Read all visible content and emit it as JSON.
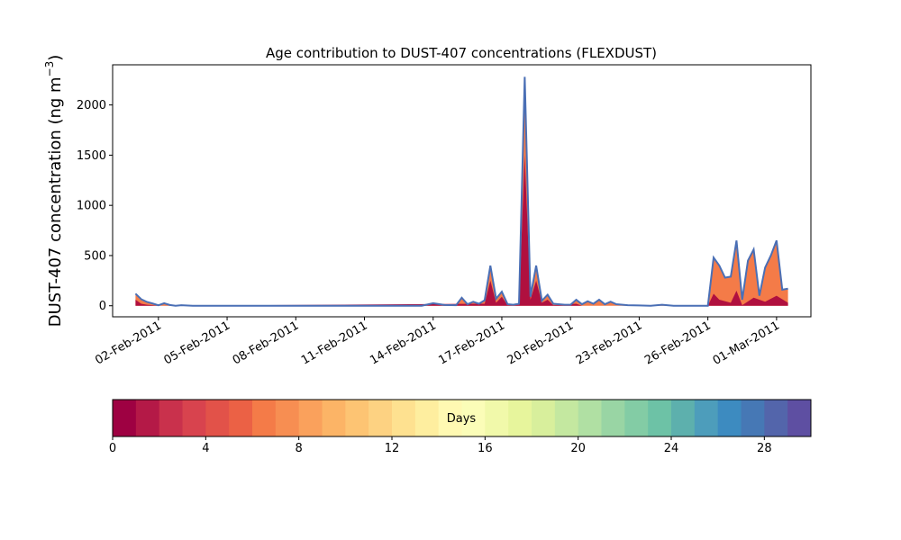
{
  "chart_data": {
    "type": "area",
    "title": "Age contribution to DUST-407 concentrations (FLEXDUST)",
    "xlabel": "",
    "ylabel": "DUST-407 concentration (ng m",
    "ylabel_superscript": "−3",
    "ylabel_close": ")",
    "xlim": [
      "2011-01-31T00:00",
      "2011-03-02T12:00"
    ],
    "ylim": [
      -110,
      2400
    ],
    "y_ticks": [
      0,
      500,
      1000,
      1500,
      2000
    ],
    "x_ticks": [
      {
        "date": "2011-02-02",
        "label": "02-Feb-2011"
      },
      {
        "date": "2011-02-05",
        "label": "05-Feb-2011"
      },
      {
        "date": "2011-02-08",
        "label": "08-Feb-2011"
      },
      {
        "date": "2011-02-11",
        "label": "11-Feb-2011"
      },
      {
        "date": "2011-02-14",
        "label": "14-Feb-2011"
      },
      {
        "date": "2011-02-17",
        "label": "17-Feb-2011"
      },
      {
        "date": "2011-02-20",
        "label": "20-Feb-2011"
      },
      {
        "date": "2011-02-23",
        "label": "23-Feb-2011"
      },
      {
        "date": "2011-02-26",
        "label": "26-Feb-2011"
      },
      {
        "date": "2011-03-01",
        "label": "01-Mar-2011"
      }
    ],
    "grid": false,
    "total_color": "#4a6fb5",
    "young_fraction_color": "#b0103f",
    "old_fraction_color": "#f47b48",
    "series": [
      {
        "role": "total",
        "points": [
          [
            "2011-02-01T00:00",
            120
          ],
          [
            "2011-02-01T06:00",
            65
          ],
          [
            "2011-02-01T12:00",
            38
          ],
          [
            "2011-02-01T18:00",
            22
          ],
          [
            "2011-02-02T00:00",
            5
          ],
          [
            "2011-02-02T06:00",
            25
          ],
          [
            "2011-02-02T12:00",
            8
          ],
          [
            "2011-02-02T18:00",
            0
          ],
          [
            "2011-02-03T00:00",
            5
          ],
          [
            "2011-02-03T12:00",
            0
          ],
          [
            "2011-02-13T12:00",
            0
          ],
          [
            "2011-02-14T00:00",
            25
          ],
          [
            "2011-02-14T12:00",
            8
          ],
          [
            "2011-02-15T00:00",
            5
          ],
          [
            "2011-02-15T06:00",
            80
          ],
          [
            "2011-02-15T12:00",
            15
          ],
          [
            "2011-02-15T18:00",
            40
          ],
          [
            "2011-02-16T00:00",
            20
          ],
          [
            "2011-02-16T06:00",
            55
          ],
          [
            "2011-02-16T12:00",
            400
          ],
          [
            "2011-02-16T18:00",
            70
          ],
          [
            "2011-02-17T00:00",
            140
          ],
          [
            "2011-02-17T06:00",
            15
          ],
          [
            "2011-02-17T12:00",
            10
          ],
          [
            "2011-02-17T18:00",
            20
          ],
          [
            "2011-02-18T00:00",
            2280
          ],
          [
            "2011-02-18T06:00",
            90
          ],
          [
            "2011-02-18T12:00",
            400
          ],
          [
            "2011-02-18T18:00",
            50
          ],
          [
            "2011-02-19T00:00",
            110
          ],
          [
            "2011-02-19T06:00",
            20
          ],
          [
            "2011-02-19T18:00",
            10
          ],
          [
            "2011-02-20T00:00",
            10
          ],
          [
            "2011-02-20T06:00",
            60
          ],
          [
            "2011-02-20T12:00",
            15
          ],
          [
            "2011-02-20T18:00",
            45
          ],
          [
            "2011-02-21T00:00",
            20
          ],
          [
            "2011-02-21T06:00",
            60
          ],
          [
            "2011-02-21T12:00",
            15
          ],
          [
            "2011-02-21T18:00",
            40
          ],
          [
            "2011-02-22T00:00",
            15
          ],
          [
            "2011-02-22T12:00",
            5
          ],
          [
            "2011-02-23T00:00",
            3
          ],
          [
            "2011-02-23T12:00",
            0
          ],
          [
            "2011-02-24T00:00",
            10
          ],
          [
            "2011-02-24T12:00",
            0
          ],
          [
            "2011-02-26T00:00",
            0
          ],
          [
            "2011-02-26T06:00",
            480
          ],
          [
            "2011-02-26T12:00",
            400
          ],
          [
            "2011-02-26T18:00",
            280
          ],
          [
            "2011-02-27T00:00",
            290
          ],
          [
            "2011-02-27T06:00",
            650
          ],
          [
            "2011-02-27T12:00",
            60
          ],
          [
            "2011-02-27T18:00",
            450
          ],
          [
            "2011-02-28T00:00",
            560
          ],
          [
            "2011-02-28T06:00",
            100
          ],
          [
            "2011-02-28T12:00",
            380
          ],
          [
            "2011-02-28T18:00",
            500
          ],
          [
            "2011-03-01T00:00",
            650
          ],
          [
            "2011-03-01T06:00",
            160
          ],
          [
            "2011-03-01T12:00",
            170
          ]
        ]
      },
      {
        "role": "young_fraction",
        "points": [
          [
            "2011-02-01T00:00",
            60
          ],
          [
            "2011-02-01T06:00",
            20
          ],
          [
            "2011-02-01T12:00",
            10
          ],
          [
            "2011-02-02T00:00",
            0
          ],
          [
            "2011-02-16T06:00",
            20
          ],
          [
            "2011-02-16T12:00",
            250
          ],
          [
            "2011-02-16T18:00",
            30
          ],
          [
            "2011-02-17T00:00",
            90
          ],
          [
            "2011-02-17T06:00",
            5
          ],
          [
            "2011-02-17T18:00",
            10
          ],
          [
            "2011-02-18T00:00",
            1500
          ],
          [
            "2011-02-18T06:00",
            60
          ],
          [
            "2011-02-18T12:00",
            250
          ],
          [
            "2011-02-18T18:00",
            30
          ],
          [
            "2011-02-19T00:00",
            60
          ],
          [
            "2011-02-19T06:00",
            5
          ],
          [
            "2011-02-20T06:00",
            20
          ],
          [
            "2011-02-20T12:00",
            0
          ],
          [
            "2011-02-26T00:00",
            0
          ],
          [
            "2011-02-26T06:00",
            120
          ],
          [
            "2011-02-26T12:00",
            60
          ],
          [
            "2011-02-27T00:00",
            30
          ],
          [
            "2011-02-27T06:00",
            150
          ],
          [
            "2011-02-27T12:00",
            5
          ],
          [
            "2011-02-28T00:00",
            80
          ],
          [
            "2011-02-28T12:00",
            40
          ],
          [
            "2011-03-01T00:00",
            100
          ],
          [
            "2011-03-01T12:00",
            30
          ]
        ]
      }
    ],
    "colorbar": {
      "label": "Days",
      "colormap": "Spectral",
      "min": 0,
      "max": 30,
      "bins": 30,
      "ticks": [
        0,
        4,
        8,
        12,
        16,
        20,
        24,
        28
      ],
      "colors": [
        "#9e0142",
        "#b41947",
        "#c9314c",
        "#d8434e",
        "#e25249",
        "#eb6145",
        "#f47b48",
        "#f78e52",
        "#faa15c",
        "#fcb466",
        "#fdc473",
        "#fdd282",
        "#fee190",
        "#feee9f",
        "#fff9b2",
        "#fbfdb8",
        "#f1f9aa",
        "#e7f59c",
        "#d8ef9c",
        "#c4e8a0",
        "#b0e0a3",
        "#99d5a4",
        "#83cca5",
        "#6dc2a6",
        "#5db0ad",
        "#4d9dbb",
        "#3d8bc0",
        "#4678b5",
        "#5365ab",
        "#5e4fa2"
      ]
    }
  }
}
